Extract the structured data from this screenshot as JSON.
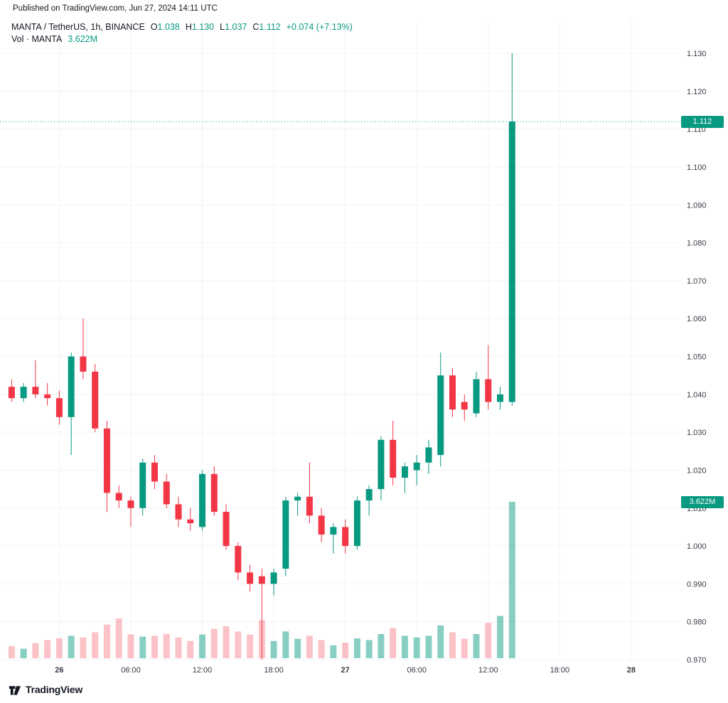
{
  "page": {
    "published_line": "Published on TradingView.com, Jun 27, 2024 14:11 UTC"
  },
  "legend": {
    "title": "MANTA / TetherUS, 1h, BINANCE",
    "ohlc": [
      {
        "label": "O",
        "value": "1.038"
      },
      {
        "label": "H",
        "value": "1.130"
      },
      {
        "label": "L",
        "value": "1.037"
      },
      {
        "label": "C",
        "value": "1.112"
      }
    ],
    "change": "+0.074 (+7.13%)",
    "volume_label": "Vol · MANTA",
    "volume_value": "3.622M"
  },
  "axis": {
    "price_badge": "1.112",
    "volume_badge": "3.622M"
  },
  "footer": {
    "brand": "TradingView"
  },
  "colors": {
    "up": "#089981",
    "down": "#f23645",
    "volume_up": "rgba(8,153,129,0.48)",
    "volume_down": "rgba(242,54,69,0.30)",
    "grid": "#f0f3fa",
    "axis_text": "#363a45",
    "badge_text": "#ffffff",
    "close_line": "#089981"
  },
  "chart_data": {
    "type": "candlestick",
    "title": "MANTA / TetherUS, 1h, BINANCE",
    "exchange": "BINANCE",
    "interval": "1h",
    "open": 1.038,
    "high": 1.13,
    "low": 1.037,
    "close": 1.112,
    "change_text": "+0.074 (+7.13%)",
    "volume_text": "3.622M",
    "ylim": [
      0.97,
      1.13
    ],
    "close_line": 1.112,
    "volume_max": 3.622,
    "y_ticks": [
      1.13,
      1.12,
      1.11,
      1.1,
      1.09,
      1.08,
      1.07,
      1.06,
      1.05,
      1.04,
      1.03,
      1.02,
      1.01,
      1.0,
      0.99,
      0.98,
      0.97
    ],
    "x_ticks": [
      {
        "index": 4,
        "label": "26",
        "major": true
      },
      {
        "index": 10,
        "label": "06:00",
        "major": false
      },
      {
        "index": 16,
        "label": "12:00",
        "major": false
      },
      {
        "index": 22,
        "label": "18:00",
        "major": false
      },
      {
        "index": 28,
        "label": "27",
        "major": true
      },
      {
        "index": 34,
        "label": "06:00",
        "major": false
      },
      {
        "index": 40,
        "label": "12:00",
        "major": false
      },
      {
        "index": 46,
        "label": "18:00",
        "major": false
      },
      {
        "index": 52,
        "label": "28",
        "major": true
      }
    ],
    "candles": [
      [
        1.042,
        1.044,
        1.038,
        1.039
      ],
      [
        1.039,
        1.043,
        1.038,
        1.042
      ],
      [
        1.042,
        1.049,
        1.039,
        1.04
      ],
      [
        1.04,
        1.043,
        1.037,
        1.039
      ],
      [
        1.039,
        1.041,
        1.032,
        1.034
      ],
      [
        1.034,
        1.051,
        1.024,
        1.05
      ],
      [
        1.05,
        1.06,
        1.044,
        1.046
      ],
      [
        1.046,
        1.048,
        1.03,
        1.031
      ],
      [
        1.031,
        1.033,
        1.009,
        1.014
      ],
      [
        1.014,
        1.016,
        1.01,
        1.012
      ],
      [
        1.012,
        1.013,
        1.005,
        1.01
      ],
      [
        1.01,
        1.023,
        1.008,
        1.022
      ],
      [
        1.022,
        1.024,
        1.015,
        1.017
      ],
      [
        1.017,
        1.019,
        1.01,
        1.011
      ],
      [
        1.011,
        1.013,
        1.005,
        1.007
      ],
      [
        1.007,
        1.01,
        1.004,
        1.006
      ],
      [
        1.005,
        1.02,
        1.004,
        1.019
      ],
      [
        1.019,
        1.021,
        1.008,
        1.009
      ],
      [
        1.009,
        1.011,
        0.999,
        1.0
      ],
      [
        1.0,
        1.001,
        0.991,
        0.993
      ],
      [
        0.993,
        0.995,
        0.988,
        0.99
      ],
      [
        0.992,
        0.994,
        0.97,
        0.99
      ],
      [
        0.99,
        0.994,
        0.987,
        0.993
      ],
      [
        0.994,
        1.013,
        0.992,
        1.012
      ],
      [
        1.012,
        1.014,
        1.008,
        1.013
      ],
      [
        1.013,
        1.022,
        1.006,
        1.008
      ],
      [
        1.008,
        1.01,
        1.001,
        1.003
      ],
      [
        1.003,
        1.006,
        0.998,
        1.005
      ],
      [
        1.005,
        1.007,
        0.998,
        1.0
      ],
      [
        1.0,
        1.013,
        0.999,
        1.012
      ],
      [
        1.012,
        1.016,
        1.008,
        1.015
      ],
      [
        1.015,
        1.029,
        1.012,
        1.028
      ],
      [
        1.028,
        1.033,
        1.016,
        1.018
      ],
      [
        1.018,
        1.022,
        1.014,
        1.021
      ],
      [
        1.02,
        1.024,
        1.016,
        1.022
      ],
      [
        1.022,
        1.028,
        1.019,
        1.026
      ],
      [
        1.024,
        1.051,
        1.021,
        1.045
      ],
      [
        1.045,
        1.047,
        1.034,
        1.036
      ],
      [
        1.038,
        1.04,
        1.033,
        1.036
      ],
      [
        1.035,
        1.046,
        1.034,
        1.044
      ],
      [
        1.044,
        1.053,
        1.036,
        1.038
      ],
      [
        1.038,
        1.042,
        1.036,
        1.04
      ],
      [
        1.038,
        1.13,
        1.037,
        1.112
      ]
    ],
    "volumes": [
      0.28,
      0.22,
      0.35,
      0.42,
      0.46,
      0.52,
      0.48,
      0.6,
      0.78,
      0.92,
      0.55,
      0.5,
      0.52,
      0.56,
      0.48,
      0.4,
      0.55,
      0.68,
      0.74,
      0.62,
      0.55,
      0.88,
      0.4,
      0.62,
      0.45,
      0.52,
      0.42,
      0.3,
      0.36,
      0.46,
      0.42,
      0.56,
      0.7,
      0.52,
      0.48,
      0.52,
      0.76,
      0.6,
      0.45,
      0.56,
      0.82,
      0.98,
      3.622
    ]
  }
}
